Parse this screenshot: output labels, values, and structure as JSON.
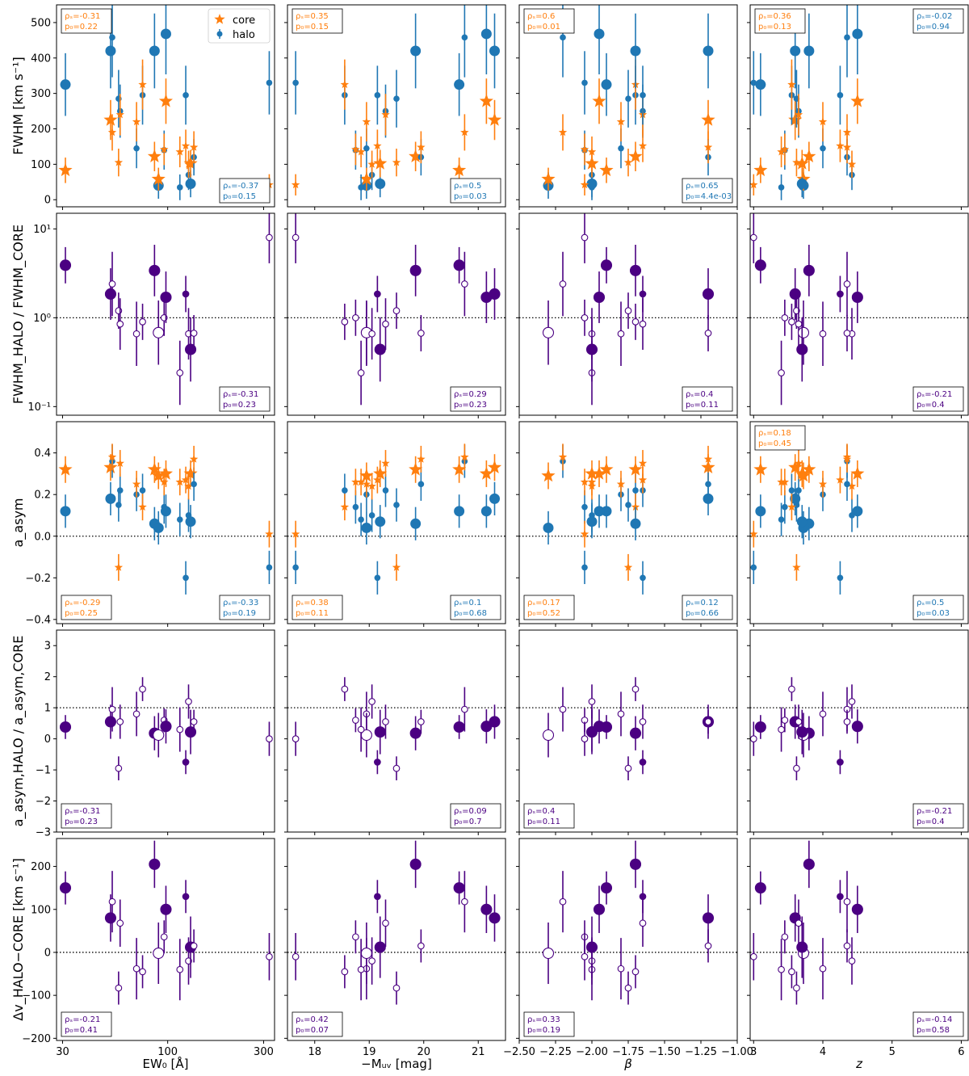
{
  "colors": {
    "core": "#ff7f0e",
    "halo": "#1f77b4",
    "ratio": "#4b0082",
    "axis": "#000000"
  },
  "columns": [
    {
      "xlabel": "EW₀ [Å]",
      "xscale": "log",
      "xlim": [
        28,
        340
      ],
      "ticks": [
        30,
        100,
        300
      ],
      "tick_labels": [
        "30",
        "100",
        "300"
      ]
    },
    {
      "xlabel": "−Mᵤᵥ [mag]",
      "xscale": "linear",
      "xlim": [
        17.5,
        21.5
      ],
      "ticks": [
        18,
        19,
        20,
        21
      ],
      "tick_labels": [
        "18",
        "19",
        "20",
        "21"
      ]
    },
    {
      "xlabel": "β",
      "xscale": "linear",
      "xlim": [
        -2.5,
        -1.0
      ],
      "ticks": [
        -2.5,
        -2.25,
        -2.0,
        -1.75,
        -1.5,
        -1.25,
        -1.0
      ],
      "tick_labels": [
        "−2.50",
        "−2.25",
        "−2.00",
        "−1.75",
        "−1.50",
        "−1.25",
        "−1.00"
      ]
    },
    {
      "xlabel": "z",
      "xscale": "linear",
      "xlim": [
        2.95,
        6.1
      ],
      "ticks": [
        3,
        4,
        5,
        6
      ],
      "tick_labels": [
        "3",
        "4",
        "5",
        "6"
      ]
    }
  ],
  "rows": [
    {
      "ylabel": "FWHM [km s⁻¹]",
      "yscale": "linear",
      "ylim": [
        -20,
        550
      ],
      "ticks": [
        0,
        100,
        200,
        300,
        400,
        500
      ],
      "tick_labels": [
        "0",
        "100",
        "200",
        "300",
        "400",
        "500"
      ],
      "ref_line": null
    },
    {
      "ylabel": "FWHM_HALO / FWHM_CORE",
      "yscale": "log",
      "ylim": [
        0.08,
        15
      ],
      "ticks": [
        0.1,
        1,
        10
      ],
      "tick_labels": [
        "10⁻¹",
        "10⁰",
        "10¹"
      ],
      "ref_line": 1
    },
    {
      "ylabel": "a_asym",
      "yscale": "linear",
      "ylim": [
        -0.42,
        0.55
      ],
      "ticks": [
        -0.4,
        -0.2,
        0.0,
        0.2,
        0.4
      ],
      "tick_labels": [
        "−0.4",
        "−0.2",
        "0.0",
        "0.2",
        "0.4"
      ],
      "ref_line": 0
    },
    {
      "ylabel": "a_asym,HALO / a_asym,CORE",
      "yscale": "linear",
      "ylim": [
        -3,
        3.5
      ],
      "ticks": [
        -3,
        -2,
        -1,
        0,
        1,
        2,
        3
      ],
      "tick_labels": [
        "−3",
        "−2",
        "−1",
        "0",
        "1",
        "2",
        "3"
      ],
      "ref_line": 1
    },
    {
      "ylabel": "Δv_HALO−CORE [km s⁻¹]",
      "yscale": "linear",
      "ylim": [
        -205,
        265
      ],
      "ticks": [
        -200,
        -100,
        0,
        100,
        200
      ],
      "tick_labels": [
        "−200",
        "−100",
        "0",
        "100",
        "200"
      ],
      "ref_line": 0
    }
  ],
  "legend": {
    "core": "core",
    "halo": "halo"
  },
  "stats": [
    [
      {
        "tl": [
          "ρₛ=-0.31",
          "p₀=0.22"
        ],
        "tl_c": "core",
        "br": [
          "ρₛ=-0.37",
          "p₀=0.15"
        ],
        "br_c": "halo"
      },
      {
        "tl": [
          "ρₛ=0.35",
          "p₀=0.15"
        ],
        "tl_c": "core",
        "br": [
          "ρₛ=0.5",
          "p₀=0.03"
        ],
        "br_c": "halo"
      },
      {
        "tl": [
          "ρₛ=0.6",
          "p₀=0.01"
        ],
        "tl_c": "core",
        "br": [
          "ρₛ=0.65",
          "p₀=4.4e-03"
        ],
        "br_c": "halo"
      },
      {
        "tl": [
          "ρₛ=0.36",
          "p₀=0.13"
        ],
        "tl_c": "core",
        "tr": [
          "ρₛ=-0.02",
          "p₀=0.94"
        ],
        "tr_c": "halo"
      }
    ],
    [
      {
        "br": [
          "ρₛ=-0.31",
          "p₀=0.23"
        ],
        "br_c": "ratio"
      },
      {
        "br": [
          "ρₛ=0.29",
          "p₀=0.23"
        ],
        "br_c": "ratio"
      },
      {
        "br": [
          "ρₛ=0.4",
          "p₀=0.11"
        ],
        "br_c": "ratio"
      },
      {
        "br": [
          "ρₛ=-0.21",
          "p₀=0.4"
        ],
        "br_c": "ratio"
      }
    ],
    [
      {
        "bl": [
          "ρₛ=-0.29",
          "p₀=0.25"
        ],
        "bl_c": "core",
        "br": [
          "ρₛ=-0.33",
          "p₀=0.19"
        ],
        "br_c": "halo"
      },
      {
        "bl": [
          "ρₛ=0.38",
          "p₀=0.11"
        ],
        "bl_c": "core",
        "br": [
          "ρₛ=0.1",
          "p₀=0.68"
        ],
        "br_c": "halo"
      },
      {
        "bl": [
          "ρₛ=0.17",
          "p₀=0.52"
        ],
        "bl_c": "core",
        "br": [
          "ρₛ=0.12",
          "p₀=0.66"
        ],
        "br_c": "halo"
      },
      {
        "tl": [
          "ρₛ=0.18",
          "p₀=0.45"
        ],
        "tl_c": "core",
        "br": [
          "ρₛ=0.5",
          "p₀=0.03"
        ],
        "br_c": "halo"
      }
    ],
    [
      {
        "bl": [
          "ρₛ=-0.31",
          "p₀=0.23"
        ],
        "bl_c": "ratio"
      },
      {
        "br": [
          "ρₛ=0.09",
          "p₀=0.7"
        ],
        "br_c": "ratio"
      },
      {
        "bl": [
          "ρₛ=0.4",
          "p₀=0.11"
        ],
        "bl_c": "ratio"
      },
      {
        "br": [
          "ρₛ=-0.21",
          "p₀=0.4"
        ],
        "br_c": "ratio"
      }
    ],
    [
      {
        "bl": [
          "ρₛ=-0.21",
          "p₀=0.41"
        ],
        "bl_c": "ratio"
      },
      {
        "bl": [
          "ρₛ=0.42",
          "p₀=0.07"
        ],
        "bl_c": "ratio"
      },
      {
        "bl": [
          "ρₛ=0.33",
          "p₀=0.19"
        ],
        "bl_c": "ratio"
      },
      {
        "br": [
          "ρₛ=-0.14",
          "p₀=0.58"
        ],
        "br_c": "ratio"
      }
    ]
  ],
  "chart_data": {
    "type": "scatter",
    "description_fields": [
      "EW0",
      "MUV",
      "beta",
      "z",
      "fwhm_core",
      "fwhm_halo",
      "a_core",
      "a_halo",
      "ratio_fwhm",
      "ratio_a",
      "dv",
      "big",
      "open"
    ],
    "objects": [
      {
        "EW0": 31,
        "MUV": 20.65,
        "beta": -1.9,
        "z": 3.1,
        "fwhm_core": 83,
        "fwhm_halo": 325,
        "a_core": 0.32,
        "a_halo": 0.12,
        "ratio_fwhm": 3.9,
        "ratio_a": 0.38,
        "dv": 150,
        "big": true,
        "open": false
      },
      {
        "EW0": 52,
        "MUV": 21.3,
        "beta": -1.2,
        "z": 3.6,
        "fwhm_core": 225,
        "fwhm_halo": 420,
        "a_core": 0.33,
        "a_halo": 0.18,
        "ratio_fwhm": 1.85,
        "ratio_a": 0.55,
        "dv": 80,
        "big": true,
        "open": false
      },
      {
        "EW0": 53,
        "MUV": 20.75,
        "beta": -2.2,
        "z": 4.35,
        "fwhm_core": 190,
        "fwhm_halo": 458,
        "a_core": 0.38,
        "a_halo": 0.36,
        "ratio_fwhm": 2.4,
        "ratio_a": 0.95,
        "dv": 118,
        "big": false,
        "open": true
      },
      {
        "EW0": 57,
        "MUV": 19.5,
        "beta": -1.75,
        "z": 3.62,
        "fwhm_core": 105,
        "fwhm_halo": 285,
        "a_core": -0.15,
        "a_halo": 0.15,
        "ratio_fwhm": 1.2,
        "ratio_a": -0.95,
        "dv": -83,
        "big": false,
        "open": true
      },
      {
        "EW0": 58,
        "MUV": 19.3,
        "beta": -1.65,
        "z": 3.65,
        "fwhm_core": 240,
        "fwhm_halo": 250,
        "a_core": 0.35,
        "a_halo": 0.22,
        "ratio_fwhm": 0.85,
        "ratio_a": 0.55,
        "dv": 68,
        "big": false,
        "open": true
      },
      {
        "EW0": 70,
        "MUV": 18.95,
        "beta": -1.8,
        "z": 4.0,
        "fwhm_core": 220,
        "fwhm_halo": 145,
        "a_core": 0.25,
        "a_halo": 0.2,
        "ratio_fwhm": 0.66,
        "ratio_a": 0.8,
        "dv": -38,
        "big": false,
        "open": true
      },
      {
        "EW0": 75,
        "MUV": 18.55,
        "beta": -1.7,
        "z": 3.55,
        "fwhm_core": 325,
        "fwhm_halo": 295,
        "a_core": 0.14,
        "a_halo": 0.22,
        "ratio_fwhm": 0.9,
        "ratio_a": 1.6,
        "dv": -45,
        "big": false,
        "open": true
      },
      {
        "EW0": 86,
        "MUV": 19.85,
        "beta": -1.7,
        "z": 3.8,
        "fwhm_core": 122,
        "fwhm_halo": 420,
        "a_core": 0.32,
        "a_halo": 0.06,
        "ratio_fwhm": 3.4,
        "ratio_a": 0.18,
        "dv": 205,
        "big": true,
        "open": false
      },
      {
        "EW0": 90,
        "MUV": 18.95,
        "beta": -2.3,
        "z": 3.72,
        "fwhm_core": 58,
        "fwhm_halo": 40,
        "a_core": 0.29,
        "a_halo": 0.04,
        "ratio_fwhm": 0.68,
        "ratio_a": 0.12,
        "dv": -2,
        "big": true,
        "open": true
      },
      {
        "EW0": 96,
        "MUV": 18.75,
        "beta": -2.05,
        "z": 3.45,
        "fwhm_core": 142,
        "fwhm_halo": 140,
        "a_core": 0.26,
        "a_halo": 0.14,
        "ratio_fwhm": 1.0,
        "ratio_a": 0.6,
        "dv": 36,
        "big": false,
        "open": true
      },
      {
        "EW0": 98,
        "MUV": 21.15,
        "beta": -1.95,
        "z": 4.5,
        "fwhm_core": 278,
        "fwhm_halo": 468,
        "a_core": 0.3,
        "a_halo": 0.12,
        "ratio_fwhm": 1.7,
        "ratio_a": 0.4,
        "dv": 100,
        "big": true,
        "open": false
      },
      {
        "EW0": 115,
        "MUV": 18.85,
        "beta": -2.0,
        "z": 3.4,
        "fwhm_core": 135,
        "fwhm_halo": 35,
        "a_core": 0.26,
        "a_halo": 0.08,
        "ratio_fwhm": 0.24,
        "ratio_a": 0.3,
        "dv": -40,
        "big": false,
        "open": true
      },
      {
        "EW0": 123,
        "MUV": 19.15,
        "beta": -1.65,
        "z": 4.25,
        "fwhm_core": 152,
        "fwhm_halo": 295,
        "a_core": 0.27,
        "a_halo": -0.2,
        "ratio_fwhm": 1.85,
        "ratio_a": -0.75,
        "dv": 130,
        "big": false,
        "open": false
      },
      {
        "EW0": 127,
        "MUV": 19.05,
        "beta": -2.0,
        "z": 4.42,
        "fwhm_core": 100,
        "fwhm_halo": 70,
        "a_core": 0.24,
        "a_halo": 0.1,
        "ratio_fwhm": 0.66,
        "ratio_a": 1.2,
        "dv": -20,
        "big": false,
        "open": true
      },
      {
        "EW0": 130,
        "MUV": 19.2,
        "beta": -2.0,
        "z": 3.7,
        "fwhm_core": 102,
        "fwhm_halo": 45,
        "a_core": 0.3,
        "a_halo": 0.07,
        "ratio_fwhm": 0.44,
        "ratio_a": 0.22,
        "dv": 12,
        "big": true,
        "open": false
      },
      {
        "EW0": 135,
        "MUV": 19.95,
        "beta": -1.2,
        "z": 4.35,
        "fwhm_core": 148,
        "fwhm_halo": 120,
        "a_core": 0.37,
        "a_halo": 0.25,
        "ratio_fwhm": 0.67,
        "ratio_a": 0.55,
        "dv": 15,
        "big": false,
        "open": true
      },
      {
        "EW0": 320,
        "MUV": 17.65,
        "beta": -2.05,
        "z": 3.0,
        "fwhm_core": 42,
        "fwhm_halo": 330,
        "a_core": 0.01,
        "a_halo": -0.15,
        "ratio_fwhm": 8.0,
        "ratio_a": 0.0,
        "dv": -10,
        "big": false,
        "open": true
      }
    ]
  }
}
